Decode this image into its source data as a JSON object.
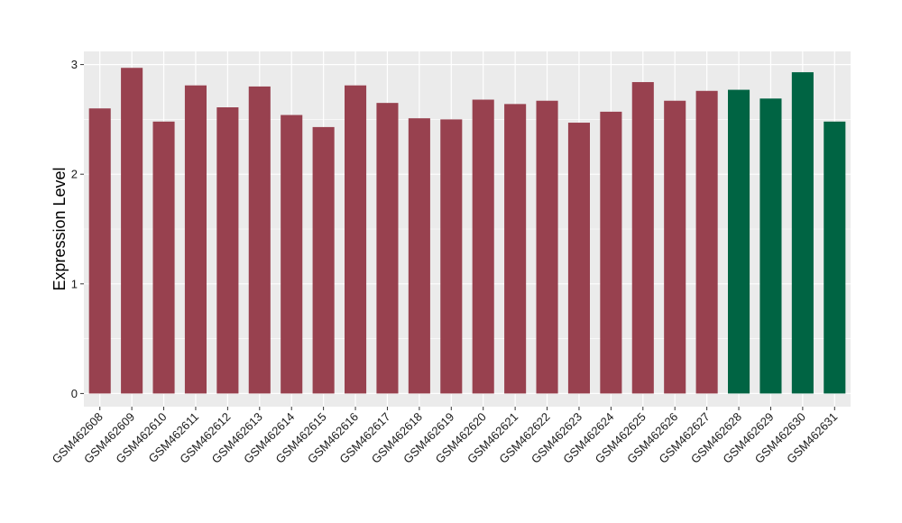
{
  "chart_data": {
    "type": "bar",
    "ylabel": "Expression Level",
    "xlabel": "",
    "ylim": [
      -0.12,
      3.12
    ],
    "yticks": [
      0,
      1,
      2,
      3
    ],
    "grid": true,
    "panel_background": "#ebebeb",
    "grid_color": "#ffffff",
    "colors": {
      "group_a": "#98414f",
      "group_b": "#006443"
    },
    "categories": [
      "GSM462608",
      "GSM462609",
      "GSM462610",
      "GSM462611",
      "GSM462612",
      "GSM462613",
      "GSM462614",
      "GSM462615",
      "GSM462616",
      "GSM462617",
      "GSM462618",
      "GSM462619",
      "GSM462620",
      "GSM462621",
      "GSM462622",
      "GSM462623",
      "GSM462624",
      "GSM462625",
      "GSM462626",
      "GSM462627",
      "GSM462628",
      "GSM462629",
      "GSM462630",
      "GSM462631"
    ],
    "values": [
      2.6,
      2.97,
      2.48,
      2.81,
      2.61,
      2.8,
      2.54,
      2.43,
      2.81,
      2.65,
      2.51,
      2.5,
      2.68,
      2.64,
      2.67,
      2.47,
      2.57,
      2.84,
      2.67,
      2.76,
      2.77,
      2.69,
      2.93,
      2.48
    ],
    "groups": [
      "a",
      "a",
      "a",
      "a",
      "a",
      "a",
      "a",
      "a",
      "a",
      "a",
      "a",
      "a",
      "a",
      "a",
      "a",
      "a",
      "a",
      "a",
      "a",
      "a",
      "b",
      "b",
      "b",
      "b"
    ]
  }
}
